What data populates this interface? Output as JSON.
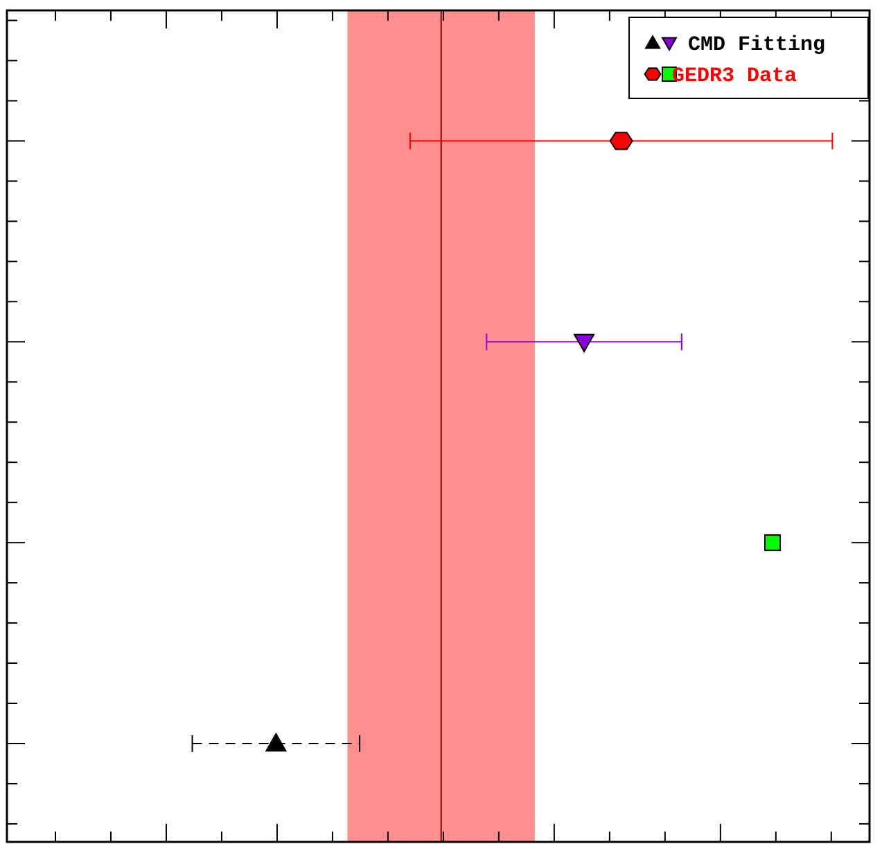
{
  "chart_data": {
    "type": "scatter",
    "xlim": [
      0.125,
      15.69
    ],
    "ylim": [
      -0.25,
      20.45
    ],
    "xticks": [
      1,
      2,
      3,
      4,
      5,
      6,
      7,
      8,
      9,
      10,
      11,
      12,
      13,
      14,
      15
    ],
    "xticks_major": [
      3,
      5,
      10,
      13
    ],
    "yticks": [
      0,
      1,
      2,
      3,
      4,
      5,
      6,
      7,
      8,
      9,
      10,
      11,
      12,
      13,
      14,
      15,
      16,
      17,
      18,
      19,
      20
    ],
    "yticks_major": [
      3,
      8,
      13,
      18
    ],
    "vline": 7.96,
    "vline_color": "#8b0000",
    "band": [
      6.27,
      9.65
    ],
    "band_color": "#ff8f8f",
    "series": [
      {
        "name": "CMD Fitting",
        "color": "#000000",
        "marker": "triangle-up",
        "dashed": true,
        "x": [
          4.98
        ],
        "y": [
          18
        ],
        "xerr": [
          1.51
        ]
      },
      {
        "color": "#8b00d9",
        "marker": "triangle-down",
        "x": [
          10.54
        ],
        "y": [
          8
        ],
        "xerr": [
          1.76
        ]
      },
      {
        "name": "GEDR3 Data",
        "color": "#ff0000",
        "marker": "hexagon",
        "x": [
          11.21
        ],
        "y": [
          3
        ],
        "xerr": [
          3.81
        ]
      },
      {
        "color": "#00ff00",
        "marker": "square",
        "x": [
          13.94
        ],
        "y": [
          13
        ]
      }
    ]
  }
}
